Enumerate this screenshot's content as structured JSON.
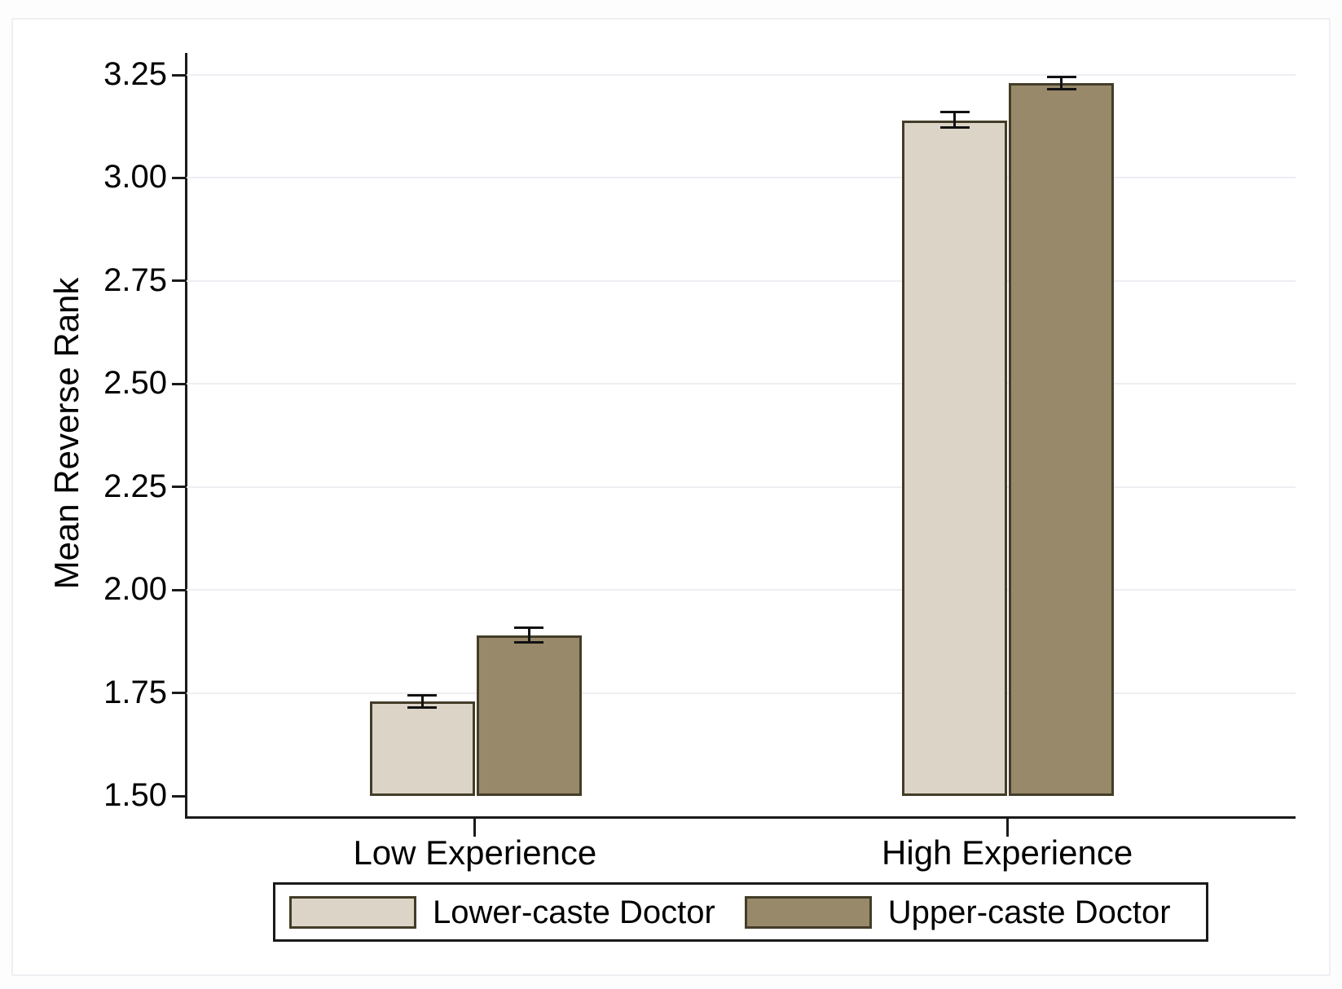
{
  "figure": {
    "colors": {
      "page_background": "#fdfdfd",
      "card_background": "#ffffff",
      "card_border": "#f0eef2"
    }
  },
  "chart_data": {
    "type": "bar",
    "title": "",
    "xlabel": "",
    "ylabel": "Mean Reverse Rank",
    "categories": [
      "Low Experience",
      "High Experience"
    ],
    "series": [
      {
        "name": "Lower-caste Doctor",
        "fill": "#dcd4c7",
        "values": [
          1.73,
          3.14
        ],
        "ci_low": [
          1.715,
          3.124
        ],
        "ci_high": [
          1.746,
          3.161
        ]
      },
      {
        "name": "Upper-caste Doctor",
        "fill": "#98896a",
        "values": [
          1.89,
          3.23
        ],
        "ci_low": [
          1.873,
          3.216
        ],
        "ci_high": [
          1.909,
          3.247
        ]
      }
    ],
    "error_bars": true,
    "ylim": [
      1.5,
      3.25
    ],
    "yticks": [
      1.5,
      1.75,
      2.0,
      2.25,
      2.5,
      2.75,
      3.0,
      3.25
    ],
    "ytick_labels": [
      "1.50",
      "1.75",
      "2.00",
      "2.25",
      "2.50",
      "2.75",
      "3.00",
      "3.25"
    ],
    "grid": true,
    "legend_position": "bottom",
    "colors": {
      "bar_border": "#433d28",
      "error_bar": "#111111",
      "gridline": "#efedf2",
      "axis": "#1a1a1a",
      "text": "#000000",
      "legend_border": "#1a1a1a"
    }
  }
}
